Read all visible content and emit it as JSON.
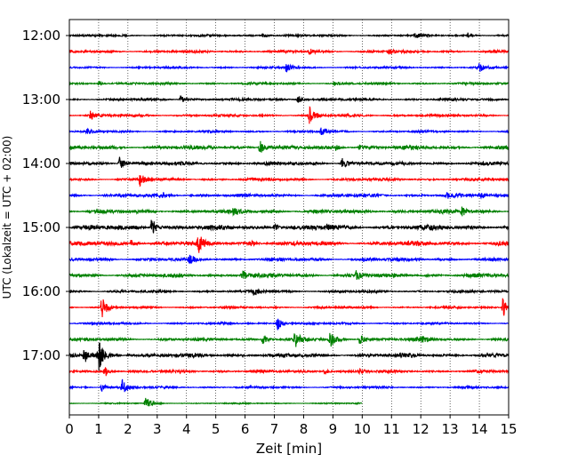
{
  "chart_data": {
    "type": "line",
    "title": "",
    "xlabel": "Zeit  [min]",
    "ylabel": "UTC (Lokalzeit = UTC + 02:00)",
    "xlim": [
      0,
      15
    ],
    "x_ticks": [
      "0",
      "1",
      "2",
      "3",
      "4",
      "5",
      "6",
      "7",
      "8",
      "9",
      "10",
      "11",
      "12",
      "13",
      "14",
      "15"
    ],
    "y_ticks": [
      "12:00",
      "13:00",
      "14:00",
      "15:00",
      "16:00",
      "17:00"
    ],
    "grid": "vertical dotted lines at each minute",
    "legend": "none",
    "trace_interval_min": 15,
    "trace_colors": [
      "#000000",
      "#ff0000",
      "#0000ff",
      "#008000"
    ],
    "series": [
      {
        "start": "12:00",
        "end_min": 15,
        "amp": 1.0,
        "events": [
          {
            "t": 6.6,
            "a": 3
          },
          {
            "t": 11.8,
            "a": 3
          },
          {
            "t": 13.6,
            "a": 3
          }
        ]
      },
      {
        "start": "12:15",
        "end_min": 15,
        "amp": 1.2,
        "events": [
          {
            "t": 8.2,
            "a": 3
          },
          {
            "t": 10.9,
            "a": 2.5
          }
        ]
      },
      {
        "start": "12:30",
        "end_min": 15,
        "amp": 1.0,
        "events": [
          {
            "t": 7.4,
            "a": 6
          },
          {
            "t": 14.0,
            "a": 5
          }
        ]
      },
      {
        "start": "12:45",
        "end_min": 15,
        "amp": 1.1,
        "events": [
          {
            "t": 1.0,
            "a": 3
          },
          {
            "t": 9.0,
            "a": 2
          }
        ]
      },
      {
        "start": "13:00",
        "end_min": 15,
        "amp": 1.2,
        "events": [
          {
            "t": 3.8,
            "a": 5
          },
          {
            "t": 7.8,
            "a": 5
          }
        ]
      },
      {
        "start": "13:15",
        "end_min": 15,
        "amp": 1.2,
        "events": [
          {
            "t": 0.7,
            "a": 5
          },
          {
            "t": 8.2,
            "a": 10
          }
        ]
      },
      {
        "start": "13:30",
        "end_min": 15,
        "amp": 1.0,
        "events": [
          {
            "t": 0.6,
            "a": 3
          },
          {
            "t": 8.6,
            "a": 5
          }
        ]
      },
      {
        "start": "13:45",
        "end_min": 15,
        "amp": 1.8,
        "events": [
          {
            "t": 6.5,
            "a": 9
          },
          {
            "t": 9.1,
            "a": 3
          },
          {
            "t": 9.9,
            "a": 3
          }
        ]
      },
      {
        "start": "14:00",
        "end_min": 15,
        "amp": 1.6,
        "events": [
          {
            "t": 1.7,
            "a": 9
          },
          {
            "t": 9.3,
            "a": 7
          }
        ]
      },
      {
        "start": "14:15",
        "end_min": 15,
        "amp": 1.3,
        "events": [
          {
            "t": 2.4,
            "a": 9
          }
        ]
      },
      {
        "start": "14:30",
        "end_min": 15,
        "amp": 1.5,
        "events": [
          {
            "t": 3.2,
            "a": 3
          },
          {
            "t": 12.9,
            "a": 3
          },
          {
            "t": 14.0,
            "a": 3
          }
        ]
      },
      {
        "start": "14:45",
        "end_min": 15,
        "amp": 1.8,
        "events": [
          {
            "t": 5.6,
            "a": 3
          },
          {
            "t": 13.4,
            "a": 5
          }
        ]
      },
      {
        "start": "15:00",
        "end_min": 15,
        "amp": 2.2,
        "events": [
          {
            "t": 2.8,
            "a": 12
          },
          {
            "t": 7.0,
            "a": 6
          },
          {
            "t": 8.8,
            "a": 3
          }
        ]
      },
      {
        "start": "15:15",
        "end_min": 15,
        "amp": 2.0,
        "events": [
          {
            "t": 2.1,
            "a": 4
          },
          {
            "t": 4.4,
            "a": 10
          },
          {
            "t": 6.2,
            "a": 3
          }
        ]
      },
      {
        "start": "15:30",
        "end_min": 15,
        "amp": 1.5,
        "events": [
          {
            "t": 4.1,
            "a": 5
          },
          {
            "t": 10.0,
            "a": 3
          }
        ]
      },
      {
        "start": "15:45",
        "end_min": 15,
        "amp": 1.8,
        "events": [
          {
            "t": 5.9,
            "a": 6
          },
          {
            "t": 9.8,
            "a": 6
          }
        ]
      },
      {
        "start": "16:00",
        "end_min": 15,
        "amp": 1.2,
        "events": [
          {
            "t": 6.3,
            "a": 5
          }
        ]
      },
      {
        "start": "16:15",
        "end_min": 15,
        "amp": 1.0,
        "events": [
          {
            "t": 1.1,
            "a": 14
          },
          {
            "t": 14.8,
            "a": 12
          }
        ]
      },
      {
        "start": "16:30",
        "end_min": 15,
        "amp": 1.0,
        "events": [
          {
            "t": 7.1,
            "a": 9
          }
        ]
      },
      {
        "start": "16:45",
        "end_min": 15,
        "amp": 1.5,
        "events": [
          {
            "t": 6.6,
            "a": 6
          },
          {
            "t": 7.7,
            "a": 10
          },
          {
            "t": 8.9,
            "a": 9
          },
          {
            "t": 9.9,
            "a": 8
          },
          {
            "t": 12.0,
            "a": 3
          }
        ]
      },
      {
        "start": "17:00",
        "end_min": 15,
        "amp": 1.8,
        "events": [
          {
            "t": 0.5,
            "a": 9
          },
          {
            "t": 1.0,
            "a": 18
          },
          {
            "t": 2.0,
            "a": 3
          }
        ]
      },
      {
        "start": "17:15",
        "end_min": 15,
        "amp": 1.3,
        "events": [
          {
            "t": 1.2,
            "a": 7
          },
          {
            "t": 8.7,
            "a": 4
          },
          {
            "t": 9.9,
            "a": 3
          }
        ]
      },
      {
        "start": "17:30",
        "end_min": 15,
        "amp": 1.0,
        "events": [
          {
            "t": 1.1,
            "a": 5
          },
          {
            "t": 1.8,
            "a": 9
          }
        ]
      },
      {
        "start": "17:45",
        "end_min": 10,
        "amp": 0.6,
        "events": [
          {
            "t": 2.6,
            "a": 8
          }
        ]
      }
    ]
  }
}
